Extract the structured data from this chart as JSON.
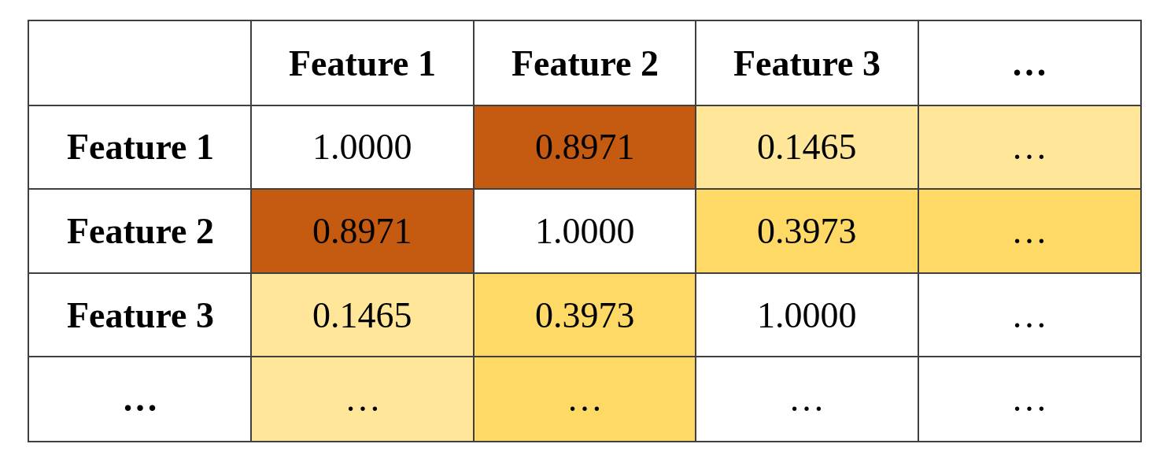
{
  "chart_data": {
    "type": "heatmap",
    "categories": [
      "Feature 1",
      "Feature 2",
      "Feature 3",
      "…"
    ],
    "y_categories": [
      "Feature 1",
      "Feature 2",
      "Feature 3",
      "…"
    ],
    "cells": [
      [
        1.0,
        0.8971,
        0.1465,
        null
      ],
      [
        0.8971,
        1.0,
        0.3973,
        null
      ],
      [
        0.1465,
        0.3973,
        1.0,
        null
      ],
      [
        null,
        null,
        null,
        null
      ]
    ],
    "cell_labels": [
      [
        "1.0000",
        "0.8971",
        "0.1465",
        "…"
      ],
      [
        "0.8971",
        "1.0000",
        "0.3973",
        "…"
      ],
      [
        "0.1465",
        "0.3973",
        "1.0000",
        "…"
      ],
      [
        "…",
        "…",
        "…",
        "…"
      ]
    ],
    "colors": [
      [
        "#ffffff",
        "#c55a11",
        "#ffe699",
        "#ffe699"
      ],
      [
        "#c55a11",
        "#ffffff",
        "#ffd966",
        "#ffd966"
      ],
      [
        "#ffe699",
        "#ffd966",
        "#ffffff",
        "#ffffff"
      ],
      [
        "#ffe699",
        "#ffd966",
        "#ffffff",
        "#ffffff"
      ]
    ]
  }
}
